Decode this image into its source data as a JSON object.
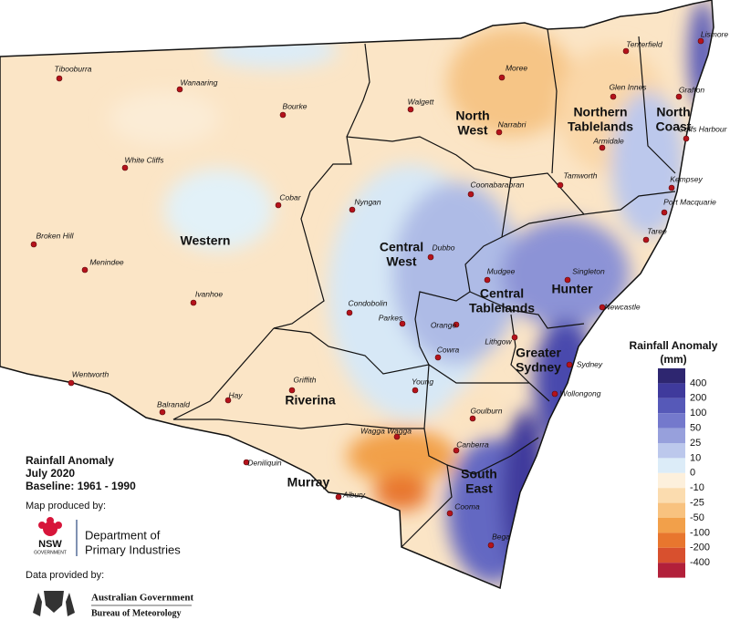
{
  "legend": {
    "title": "Rainfall Anomaly",
    "unit": "(mm)",
    "labels": [
      400,
      200,
      100,
      50,
      25,
      10,
      0,
      -10,
      -25,
      -50,
      -100,
      -200,
      -400
    ],
    "colors": [
      "#2e2670",
      "#3f3a9c",
      "#5659b8",
      "#7479cc",
      "#97a0dc",
      "#bcc8ec",
      "#dcecf8",
      "#fdf0dc",
      "#fbdcaf",
      "#f8c27f",
      "#f2a04a",
      "#e8762e",
      "#d8502e",
      "#b2203a"
    ]
  },
  "info": {
    "title": "Rainfall Anomaly",
    "period": "July 2020",
    "baseline": "Baseline: 1961 - 1990",
    "produced_by": "Map produced by:",
    "nsw": "NSW",
    "government": "GOVERNMENT",
    "department_line1": "Department of",
    "department_line2": "Primary Industries",
    "data_by": "Data provided by:",
    "agency_line1": "Australian Government",
    "agency_line2": "Bureau of Meteorology"
  },
  "regions": [
    {
      "lines": [
        "Western"
      ]
    },
    {
      "lines": [
        "North",
        "West"
      ]
    },
    {
      "lines": [
        "Northern",
        "Tablelands"
      ]
    },
    {
      "lines": [
        "North",
        "Coast"
      ]
    },
    {
      "lines": [
        "Central",
        "West"
      ]
    },
    {
      "lines": [
        "Central",
        "Tablelands"
      ]
    },
    {
      "lines": [
        "Hunter"
      ]
    },
    {
      "lines": [
        "Greater",
        "Sydney"
      ]
    },
    {
      "lines": [
        "Riverina"
      ]
    },
    {
      "lines": [
        "Murray"
      ]
    },
    {
      "lines": [
        "South",
        "East"
      ]
    }
  ],
  "towns": [
    "Tibooburra",
    "Wanaaring",
    "Bourke",
    "Walgett",
    "Moree",
    "Narrabri",
    "Tenterfield",
    "Lismore",
    "Glen Innes",
    "Grafton",
    "Armidale",
    "Coffs Harbour",
    "White Cliffs",
    "Cobar",
    "Nyngan",
    "Coonabarabran",
    "Tamworth",
    "Kempsey",
    "Port Macquarie",
    "Broken Hill",
    "Menindee",
    "Dubbo",
    "Taree",
    "Mudgee",
    "Singleton",
    "Ivanhoe",
    "Condobolin",
    "Newcastle",
    "Parkes",
    "Orange",
    "Lithgow",
    "Cowra",
    "Sydney",
    "Wentworth",
    "Young",
    "Griffith",
    "Hay",
    "Wollongong",
    "Balranald",
    "Goulburn",
    "Wagga Wagga",
    "Canberra",
    "Deniliquin",
    "Albury",
    "Cooma",
    "Bega"
  ]
}
